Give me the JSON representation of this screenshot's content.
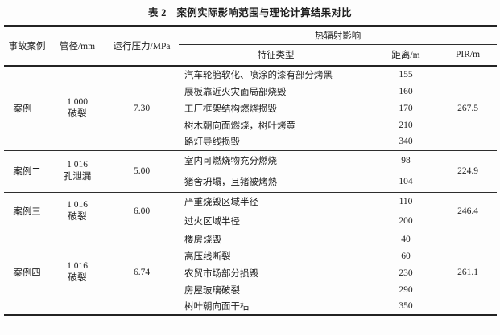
{
  "table": {
    "title": "表 2　案例实际影响范围与理论计算结果对比",
    "header": {
      "case": "事故案例",
      "diameter": "管径/mm",
      "pressure": "运行压力/MPa",
      "radiation_group": "热辐射影响",
      "feature": "特征类型",
      "distance": "距离/m",
      "pir": "PIR/m"
    },
    "cases": [
      {
        "name": "案例一",
        "diameter": "1 000",
        "failure_mode": "破裂",
        "pressure": "7.30",
        "pir": "267.5",
        "features": [
          {
            "type": "汽车轮胎软化、喷涂的漆有部分烤黑",
            "distance": "155"
          },
          {
            "type": "展板靠近火灾面局部烧毁",
            "distance": "160"
          },
          {
            "type": "工厂框架结构燃烧损毁",
            "distance": "170"
          },
          {
            "type": "树木朝向面燃烧，树叶烤黄",
            "distance": "210"
          },
          {
            "type": "路灯导线损毁",
            "distance": "340"
          }
        ]
      },
      {
        "name": "案例二",
        "diameter": "1 016",
        "failure_mode": "孔泄漏",
        "pressure": "5.00",
        "pir": "224.9",
        "features": [
          {
            "type": "室内可燃烧物充分燃烧",
            "distance": "98"
          },
          {
            "type": "猪舍坍塌，且猪被烤熟",
            "distance": "104"
          }
        ]
      },
      {
        "name": "案例三",
        "diameter": "1 016",
        "failure_mode": "破裂",
        "pressure": "6.00",
        "pir": "246.4",
        "features": [
          {
            "type": "严重烧毁区域半径",
            "distance": "110"
          },
          {
            "type": "过火区域半径",
            "distance": "200"
          }
        ]
      },
      {
        "name": "案例四",
        "diameter": "1 016",
        "failure_mode": "破裂",
        "pressure": "6.74",
        "pir": "261.1",
        "features": [
          {
            "type": "楼房烧毁",
            "distance": "40"
          },
          {
            "type": "高压线断裂",
            "distance": "60"
          },
          {
            "type": "农贸市场部分损毁",
            "distance": "230"
          },
          {
            "type": "房屋玻璃破裂",
            "distance": "290"
          },
          {
            "type": "树叶朝向面干枯",
            "distance": "350"
          }
        ]
      }
    ],
    "colors": {
      "text": "#1e1e1e",
      "rule": "#232323",
      "background": "#fdfdfd"
    }
  }
}
